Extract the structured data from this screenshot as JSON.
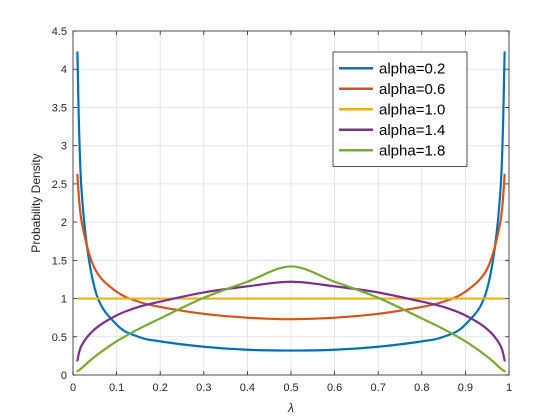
{
  "chart_data": {
    "type": "line",
    "title": "",
    "xlabel": "λ",
    "ylabel": "Probability Density",
    "xlim": [
      0,
      1
    ],
    "ylim": [
      0,
      4.5
    ],
    "xticks": [
      "0",
      "0.1",
      "0.2",
      "0.3",
      "0.4",
      "0.5",
      "0.6",
      "0.7",
      "0.8",
      "0.9",
      "1"
    ],
    "yticks": [
      "0",
      "0.5",
      "1",
      "1.5",
      "2",
      "2.5",
      "3",
      "3.5",
      "4",
      "4.5"
    ],
    "grid": true,
    "legend_position": "top-right",
    "x": [
      0.01,
      0.02,
      0.05,
      0.1,
      0.15,
      0.2,
      0.3,
      0.4,
      0.5,
      0.6,
      0.7,
      0.8,
      0.85,
      0.9,
      0.95,
      0.98,
      0.99
    ],
    "series": [
      {
        "name": "alpha=0.2",
        "color": "#0072BD",
        "values": [
          4.22,
          2.38,
          1.13,
          0.66,
          0.5,
          0.44,
          0.37,
          0.33,
          0.32,
          0.33,
          0.37,
          0.44,
          0.5,
          0.66,
          1.13,
          2.38,
          4.22
        ]
      },
      {
        "name": "alpha=0.6",
        "color": "#D95319",
        "values": [
          2.62,
          2.0,
          1.39,
          1.09,
          0.96,
          0.89,
          0.8,
          0.75,
          0.73,
          0.75,
          0.8,
          0.89,
          0.96,
          1.09,
          1.39,
          2.0,
          2.62
        ]
      },
      {
        "name": "alpha=1.0",
        "color": "#EDB120",
        "values": [
          1,
          1,
          1,
          1,
          1,
          1,
          1,
          1,
          1,
          1,
          1,
          1,
          1,
          1,
          1,
          1,
          1
        ]
      },
      {
        "name": "alpha=1.4",
        "color": "#7E2F8E",
        "values": [
          0.19,
          0.39,
          0.6,
          0.78,
          0.89,
          0.96,
          1.08,
          1.16,
          1.22,
          1.16,
          1.08,
          0.96,
          0.89,
          0.78,
          0.6,
          0.39,
          0.19
        ]
      },
      {
        "name": "alpha=1.8",
        "color": "#77AC30",
        "values": [
          0.05,
          0.09,
          0.24,
          0.44,
          0.6,
          0.74,
          1.01,
          1.22,
          1.42,
          1.22,
          1.01,
          0.74,
          0.6,
          0.44,
          0.24,
          0.09,
          0.05
        ]
      }
    ]
  }
}
